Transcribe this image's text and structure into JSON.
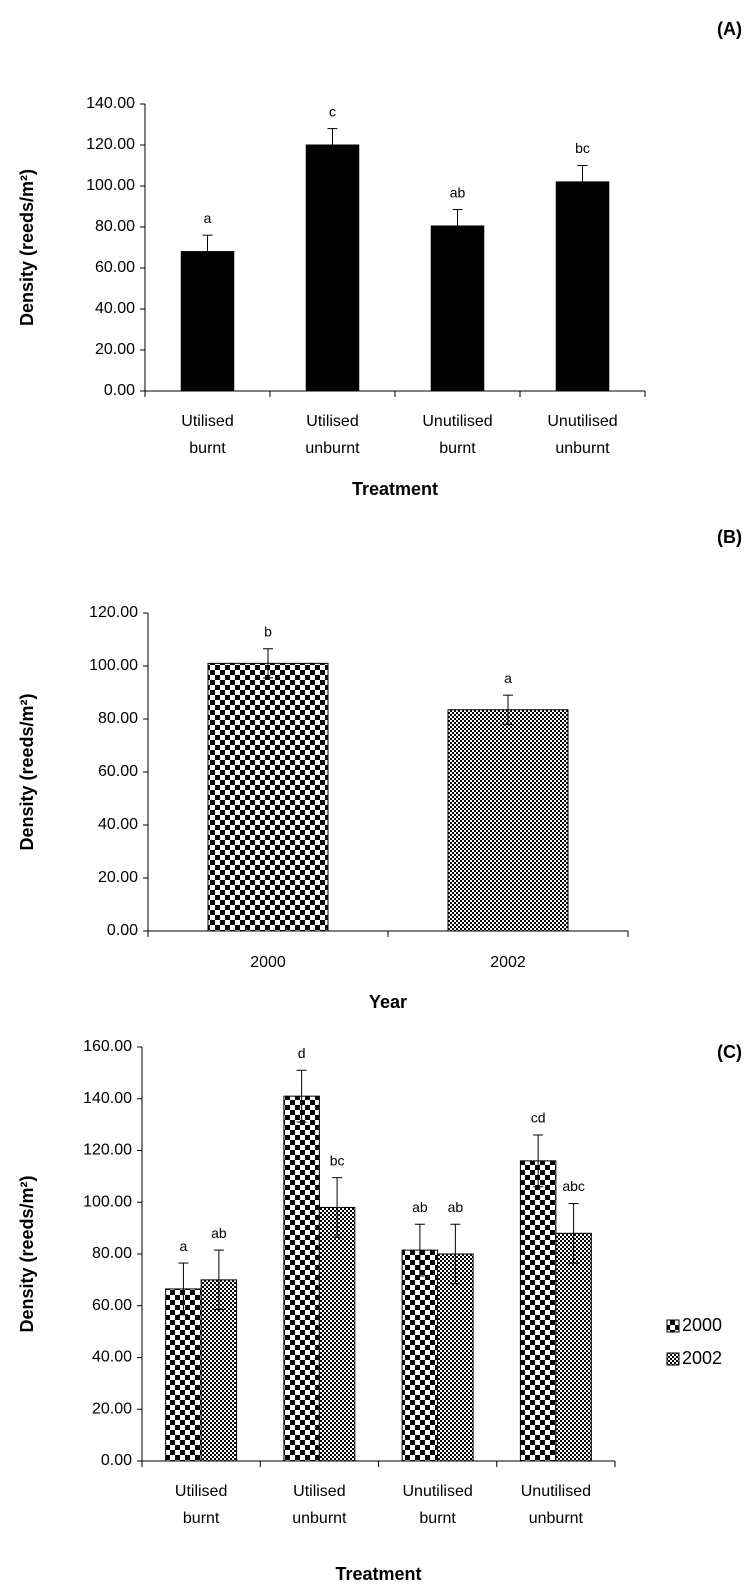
{
  "chart_data": [
    {
      "type": "bar",
      "panel": "(A)",
      "xlabel": "Treatment",
      "ylabel": "Density (reeds/m²)",
      "categories": [
        [
          "Utilised",
          "burnt"
        ],
        [
          "Utilised",
          "unburnt"
        ],
        [
          "Unutilised",
          "burnt"
        ],
        [
          "Unutilised",
          "unburnt"
        ]
      ],
      "series": [
        {
          "fill": "#000000",
          "values": [
            68,
            120,
            80.5,
            102
          ],
          "errors": [
            8,
            8,
            8,
            8
          ],
          "annotations": [
            "a",
            "c",
            "ab",
            "bc"
          ]
        }
      ],
      "ylim": [
        0,
        140
      ],
      "yticks": [
        {
          "value": 0,
          "label": "0.00"
        },
        {
          "value": 20,
          "label": "20.00"
        },
        {
          "value": 40,
          "label": "40.00"
        },
        {
          "value": 60,
          "label": "60.00"
        },
        {
          "value": 80,
          "label": "80.00"
        },
        {
          "value": 100,
          "label": "100.00"
        },
        {
          "value": 120,
          "label": "120.00"
        },
        {
          "value": 140,
          "label": "140.00"
        }
      ]
    },
    {
      "type": "bar",
      "panel": "(B)",
      "xlabel": "Year",
      "ylabel": "Density (reeds/m²)",
      "categories": [
        [
          "2000"
        ],
        [
          "2002"
        ]
      ],
      "series": [
        {
          "fills": [
            "coarse-checker",
            "fine-checker"
          ],
          "values": [
            101,
            83.5
          ],
          "errors": [
            5.5,
            5.5
          ],
          "annotations": [
            "b",
            "a"
          ]
        }
      ],
      "ylim": [
        0,
        120
      ],
      "yticks": [
        {
          "value": 0,
          "label": "0.00"
        },
        {
          "value": 20,
          "label": "20.00"
        },
        {
          "value": 40,
          "label": "40.00"
        },
        {
          "value": 60,
          "label": "60.00"
        },
        {
          "value": 80,
          "label": "80.00"
        },
        {
          "value": 100,
          "label": "100.00"
        },
        {
          "value": 120,
          "label": "120.00"
        }
      ]
    },
    {
      "type": "bar",
      "panel": "(C)",
      "xlabel": "Treatment",
      "ylabel": "Density (reeds/m²)",
      "legend": "right",
      "categories": [
        [
          "Utilised",
          "burnt"
        ],
        [
          "Utilised",
          "unburnt"
        ],
        [
          "Unutilised",
          "burnt"
        ],
        [
          "Unutilised",
          "unburnt"
        ]
      ],
      "series": [
        {
          "name": "2000",
          "fill": "coarse-checker",
          "values": [
            66.5,
            141,
            81.5,
            116
          ],
          "errors": [
            10,
            10,
            10,
            10
          ],
          "annotations": [
            "a",
            "d",
            "ab",
            "cd"
          ]
        },
        {
          "name": "2002",
          "fill": "fine-checker",
          "values": [
            70,
            98,
            80,
            88
          ],
          "errors": [
            11.5,
            11.5,
            11.5,
            11.5
          ],
          "annotations": [
            "ab",
            "bc",
            "ab",
            "abc"
          ]
        }
      ],
      "ylim": [
        0,
        160
      ],
      "yticks": [
        {
          "value": 0,
          "label": "0.00"
        },
        {
          "value": 20,
          "label": "20.00"
        },
        {
          "value": 40,
          "label": "40.00"
        },
        {
          "value": 60,
          "label": "60.00"
        },
        {
          "value": 80,
          "label": "80.00"
        },
        {
          "value": 100,
          "label": "100.00"
        },
        {
          "value": 120,
          "label": "120.00"
        },
        {
          "value": 140,
          "label": "140.00"
        },
        {
          "value": 160,
          "label": "160.00"
        }
      ]
    }
  ]
}
